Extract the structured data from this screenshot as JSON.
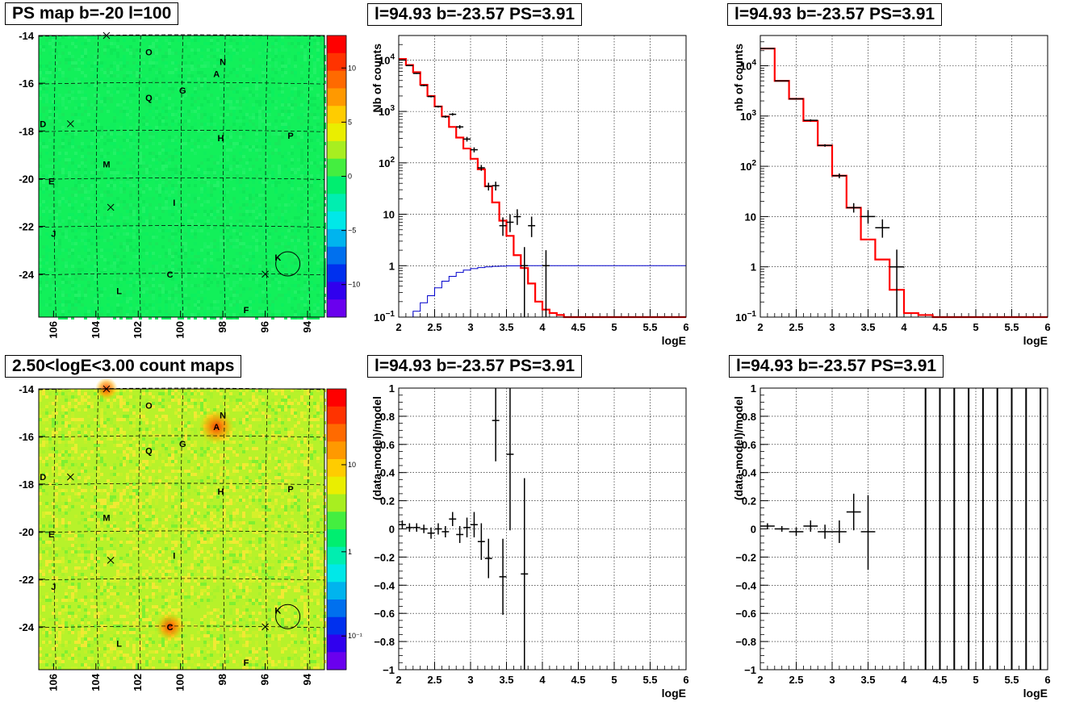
{
  "panels": {
    "map_top": {
      "title": "PS map b=-20 l=100",
      "colorbar": {
        "ticks": [
          10,
          5,
          0,
          -5,
          -10
        ],
        "vmin": -13,
        "vmax": 13
      },
      "base_color": "#12f05a"
    },
    "map_bottom": {
      "title": "2.50<logE<3.00 count maps",
      "colorbar": {
        "ticks": [
          "10",
          "1",
          "10⁻¹"
        ],
        "log": true
      },
      "base_color": "#b7f22a"
    },
    "spec_left_title": "l=94.93 b=-23.57 PS=3.91",
    "spec_right_title": "l=94.93 b=-23.57 PS=3.91",
    "res_left_title": "l=94.93 b=-23.57 PS=3.91",
    "res_right_title": "l=94.93 b=-23.57 PS=3.91"
  },
  "map_axes": {
    "xlim": [
      106.7,
      93.2
    ],
    "ylim": [
      -25.8,
      -14
    ],
    "xticks": [
      106,
      104,
      102,
      100,
      98,
      96,
      94
    ],
    "yticks": [
      -14,
      -16,
      -18,
      -20,
      -22,
      -24
    ],
    "sources": [
      {
        "label": "O",
        "l": 101.5,
        "b": -14.7
      },
      {
        "label": "N",
        "l": 98.0,
        "b": -15.1
      },
      {
        "label": "A",
        "l": 98.3,
        "b": -15.6
      },
      {
        "label": "G",
        "l": 99.9,
        "b": -16.3
      },
      {
        "label": "Q",
        "l": 101.5,
        "b": -16.6
      },
      {
        "label": "D",
        "l": 106.5,
        "b": -17.7
      },
      {
        "label": "H",
        "l": 98.1,
        "b": -18.3
      },
      {
        "label": "P",
        "l": 94.8,
        "b": -18.2
      },
      {
        "label": "M",
        "l": 103.5,
        "b": -19.4
      },
      {
        "label": "E",
        "l": 106.1,
        "b": -20.1
      },
      {
        "label": "I",
        "l": 100.3,
        "b": -21.0
      },
      {
        "label": "J",
        "l": 106.0,
        "b": -22.3
      },
      {
        "label": "K",
        "l": 95.4,
        "b": -23.3
      },
      {
        "label": "C",
        "l": 100.5,
        "b": -24.0
      },
      {
        "label": "L",
        "l": 102.9,
        "b": -24.7
      },
      {
        "label": "F",
        "l": 96.9,
        "b": -25.5
      }
    ],
    "crosses": [
      {
        "l": 103.5,
        "b": -14.0
      },
      {
        "l": 105.2,
        "b": -17.7
      },
      {
        "l": 103.3,
        "b": -21.2
      },
      {
        "l": 96.0,
        "b": -24.0
      }
    ],
    "circle": {
      "l": 94.93,
      "b": -23.57
    }
  },
  "chart_data": [
    {
      "type": "line",
      "xlabel": "logE",
      "ylabel": "Nb of counts",
      "xlim": [
        2,
        6
      ],
      "ylim": [
        0.1,
        30000
      ],
      "ylog": true,
      "grid": true,
      "xticks": [
        "2",
        "2.5",
        "3",
        "3.5",
        "4",
        "4.5",
        "5",
        "5.5",
        "6"
      ],
      "yticks": [
        {
          "v": 10000,
          "t": "10^4"
        },
        {
          "v": 1000,
          "t": "10^3"
        },
        {
          "v": 100,
          "t": "10^2"
        },
        {
          "v": 10,
          "t": "10"
        },
        {
          "v": 1,
          "t": "1"
        },
        {
          "v": 0.1,
          "t": "10^-1"
        }
      ],
      "series": [
        {
          "kind": "step",
          "color": "#ff0000",
          "width": 2.2,
          "edges": [
            2.0,
            2.1,
            2.2,
            2.3,
            2.4,
            2.5,
            2.6,
            2.7,
            2.8,
            2.9,
            3.0,
            3.1,
            3.2,
            3.3,
            3.4,
            3.5,
            3.6,
            3.7,
            3.8,
            3.9,
            4.0,
            4.1,
            4.2,
            4.3,
            6.0
          ],
          "values": [
            10500,
            8000,
            5800,
            3300,
            2000,
            1250,
            800,
            500,
            310,
            190,
            120,
            75,
            35,
            17,
            7.5,
            3.8,
            1.6,
            0.9,
            0.45,
            0.2,
            0.14,
            0.12,
            0.11,
            0.1
          ]
        },
        {
          "kind": "step",
          "color": "#0000cc",
          "width": 1,
          "edges": [
            2.0,
            2.1,
            2.2,
            2.3,
            2.4,
            2.5,
            2.6,
            2.7,
            2.8,
            2.9,
            3.0,
            3.1,
            3.2,
            3.3,
            3.4,
            3.5,
            3.6,
            3.7,
            3.8,
            3.9,
            4.0,
            6.0
          ],
          "values": [
            0.1,
            0.1,
            0.13,
            0.19,
            0.26,
            0.37,
            0.5,
            0.62,
            0.74,
            0.82,
            0.88,
            0.92,
            0.95,
            0.97,
            0.98,
            0.99,
            0.99,
            1.0,
            1.0,
            1.0,
            1.0
          ]
        },
        {
          "kind": "errors",
          "color": "#000000",
          "points": [
            {
              "x": 2.05,
              "y": 10000,
              "xe": 0.05,
              "lo": 9800,
              "hi": 10200
            },
            {
              "x": 2.15,
              "y": 7800,
              "xe": 0.05,
              "lo": 7650,
              "hi": 7950
            },
            {
              "x": 2.25,
              "y": 5500,
              "xe": 0.05,
              "lo": 5370,
              "hi": 5630
            },
            {
              "x": 2.35,
              "y": 3200,
              "xe": 0.05,
              "lo": 3100,
              "hi": 3300
            },
            {
              "x": 2.45,
              "y": 1950,
              "xe": 0.05,
              "lo": 1880,
              "hi": 2020
            },
            {
              "x": 2.55,
              "y": 1240,
              "xe": 0.05,
              "lo": 1190,
              "hi": 1290
            },
            {
              "x": 2.65,
              "y": 790,
              "xe": 0.05,
              "lo": 750,
              "hi": 830
            },
            {
              "x": 2.75,
              "y": 880,
              "xe": 0.05,
              "lo": 830,
              "hi": 930
            },
            {
              "x": 2.85,
              "y": 500,
              "xe": 0.05,
              "lo": 460,
              "hi": 540
            },
            {
              "x": 2.95,
              "y": 290,
              "xe": 0.05,
              "lo": 260,
              "hi": 320
            },
            {
              "x": 3.05,
              "y": 180,
              "xe": 0.05,
              "lo": 160,
              "hi": 200
            },
            {
              "x": 3.15,
              "y": 80,
              "xe": 0.05,
              "lo": 70,
              "hi": 91
            },
            {
              "x": 3.25,
              "y": 35,
              "xe": 0.05,
              "lo": 29,
              "hi": 41
            },
            {
              "x": 3.35,
              "y": 36,
              "xe": 0.05,
              "lo": 29,
              "hi": 43
            },
            {
              "x": 3.45,
              "y": 6,
              "xe": 0.05,
              "lo": 3.8,
              "hi": 8.7
            },
            {
              "x": 3.55,
              "y": 7,
              "xe": 0.05,
              "lo": 4.5,
              "hi": 10
            },
            {
              "x": 3.65,
              "y": 9,
              "xe": 0.05,
              "lo": 6.2,
              "hi": 12.5
            },
            {
              "x": 3.75,
              "y": 1,
              "xe": 0.05,
              "lo": 0.1,
              "hi": 2.3
            },
            {
              "x": 3.85,
              "y": 6,
              "xe": 0.05,
              "lo": 3.6,
              "hi": 9
            },
            {
              "x": 4.05,
              "y": 1,
              "xe": 0.05,
              "lo": 0.1,
              "hi": 2
            }
          ]
        }
      ]
    },
    {
      "type": "line",
      "xlabel": "logE",
      "ylabel": "nb of counts",
      "xlim": [
        2,
        6
      ],
      "ylim": [
        0.1,
        40000
      ],
      "ylog": true,
      "grid": true,
      "xticks": [
        "2",
        "2.5",
        "3",
        "3.5",
        "4",
        "4.5",
        "5",
        "5.5",
        "6"
      ],
      "yticks": [
        {
          "v": 10000,
          "t": "10^4"
        },
        {
          "v": 1000,
          "t": "10^3"
        },
        {
          "v": 100,
          "t": "10^2"
        },
        {
          "v": 10,
          "t": "10"
        },
        {
          "v": 1,
          "t": "1"
        },
        {
          "v": 0.1,
          "t": "10^-1"
        }
      ],
      "series": [
        {
          "kind": "step",
          "color": "#ff0000",
          "width": 2.2,
          "edges": [
            2.0,
            2.2,
            2.4,
            2.6,
            2.8,
            3.0,
            3.2,
            3.4,
            3.6,
            3.8,
            4.0,
            4.2,
            4.4,
            6.0
          ],
          "values": [
            22000,
            5000,
            2200,
            800,
            260,
            65,
            15,
            3.5,
            1.4,
            0.35,
            0.12,
            0.11,
            0.1
          ]
        },
        {
          "kind": "errors",
          "color": "#000000",
          "points": [
            {
              "x": 2.1,
              "y": 22000,
              "xe": 0.1,
              "lo": 21700,
              "hi": 22300
            },
            {
              "x": 2.3,
              "y": 5000,
              "xe": 0.1,
              "lo": 4880,
              "hi": 5120
            },
            {
              "x": 2.5,
              "y": 2200,
              "xe": 0.1,
              "lo": 2130,
              "hi": 2270
            },
            {
              "x": 2.7,
              "y": 820,
              "xe": 0.1,
              "lo": 780,
              "hi": 860
            },
            {
              "x": 2.9,
              "y": 260,
              "xe": 0.1,
              "lo": 245,
              "hi": 275
            },
            {
              "x": 3.1,
              "y": 65,
              "xe": 0.1,
              "lo": 58,
              "hi": 72
            },
            {
              "x": 3.3,
              "y": 15,
              "xe": 0.1,
              "lo": 12,
              "hi": 18.5
            },
            {
              "x": 3.5,
              "y": 10,
              "xe": 0.1,
              "lo": 7.2,
              "hi": 13.5
            },
            {
              "x": 3.7,
              "y": 6,
              "xe": 0.1,
              "lo": 3.8,
              "hi": 8.8
            },
            {
              "x": 3.9,
              "y": 1,
              "xe": 0.1,
              "lo": 0.1,
              "hi": 2.2
            }
          ]
        }
      ]
    },
    {
      "type": "scatter",
      "xlabel": "logE",
      "ylabel": "(data-model)/model",
      "xlim": [
        2,
        6
      ],
      "ylim": [
        -1,
        1
      ],
      "grid": true,
      "xticks": [
        "2",
        "2.5",
        "3",
        "3.5",
        "4",
        "4.5",
        "5",
        "5.5",
        "6"
      ],
      "yticks": [
        {
          "v": 1,
          "t": "1"
        },
        {
          "v": 0.8,
          "t": "0.8"
        },
        {
          "v": 0.6,
          "t": "0.6"
        },
        {
          "v": 0.4,
          "t": "0.4"
        },
        {
          "v": 0.2,
          "t": "0.2"
        },
        {
          "v": 0,
          "t": "0"
        },
        {
          "v": -0.2,
          "t": "−0.2"
        },
        {
          "v": -0.4,
          "t": "−0.4"
        },
        {
          "v": -0.6,
          "t": "−0.6"
        },
        {
          "v": -0.8,
          "t": "−0.8"
        },
        {
          "v": -1,
          "t": "−1"
        }
      ],
      "series": [
        {
          "kind": "errors",
          "color": "#000000",
          "points": [
            {
              "x": 2.05,
              "y": 0.03,
              "xe": 0.05,
              "lo": 0.0,
              "hi": 0.06
            },
            {
              "x": 2.15,
              "y": 0.01,
              "xe": 0.05,
              "lo": -0.02,
              "hi": 0.04
            },
            {
              "x": 2.25,
              "y": 0.01,
              "xe": 0.05,
              "lo": -0.02,
              "hi": 0.04
            },
            {
              "x": 2.35,
              "y": 0.0,
              "xe": 0.05,
              "lo": -0.03,
              "hi": 0.03
            },
            {
              "x": 2.45,
              "y": -0.03,
              "xe": 0.05,
              "lo": -0.07,
              "hi": 0.01
            },
            {
              "x": 2.55,
              "y": 0.0,
              "xe": 0.05,
              "lo": -0.04,
              "hi": 0.04
            },
            {
              "x": 2.65,
              "y": -0.02,
              "xe": 0.05,
              "lo": -0.06,
              "hi": 0.02
            },
            {
              "x": 2.75,
              "y": 0.07,
              "xe": 0.05,
              "lo": 0.02,
              "hi": 0.12
            },
            {
              "x": 2.85,
              "y": -0.04,
              "xe": 0.05,
              "lo": -0.1,
              "hi": 0.02
            },
            {
              "x": 2.95,
              "y": 0.01,
              "xe": 0.05,
              "lo": -0.06,
              "hi": 0.08
            },
            {
              "x": 3.05,
              "y": 0.03,
              "xe": 0.05,
              "lo": -0.06,
              "hi": 0.12
            },
            {
              "x": 3.15,
              "y": -0.09,
              "xe": 0.05,
              "lo": -0.22,
              "hi": 0.04
            },
            {
              "x": 3.25,
              "y": -0.21,
              "xe": 0.05,
              "lo": -0.35,
              "hi": -0.07
            },
            {
              "x": 3.35,
              "y": 0.77,
              "xe": 0.05,
              "lo": 0.48,
              "hi": 1.0
            },
            {
              "x": 3.45,
              "y": -0.34,
              "xe": 0.05,
              "lo": -0.61,
              "hi": -0.07
            },
            {
              "x": 3.55,
              "y": 0.53,
              "xe": 0.05,
              "lo": -0.01,
              "hi": 1.0
            },
            {
              "x": 3.75,
              "y": -0.32,
              "xe": 0.05,
              "lo": -1.0,
              "hi": 0.36
            }
          ]
        }
      ]
    },
    {
      "type": "scatter",
      "xlabel": "logE",
      "ylabel": "(data-model)/model",
      "xlim": [
        2,
        6
      ],
      "ylim": [
        -1,
        1
      ],
      "grid": true,
      "xticks": [
        "2",
        "2.5",
        "3",
        "3.5",
        "4",
        "4.5",
        "5",
        "5.5",
        "6"
      ],
      "yticks": [
        {
          "v": 1,
          "t": "1"
        },
        {
          "v": 0.8,
          "t": "0.8"
        },
        {
          "v": 0.6,
          "t": "0.6"
        },
        {
          "v": 0.4,
          "t": "0.4"
        },
        {
          "v": 0.2,
          "t": "0.2"
        },
        {
          "v": 0,
          "t": "0"
        },
        {
          "v": -0.2,
          "t": "−0.2"
        },
        {
          "v": -0.4,
          "t": "−0.4"
        },
        {
          "v": -0.6,
          "t": "−0.6"
        },
        {
          "v": -0.8,
          "t": "−0.8"
        },
        {
          "v": -1,
          "t": "−1"
        }
      ],
      "series": [
        {
          "kind": "errors",
          "color": "#000000",
          "points": [
            {
              "x": 2.1,
              "y": 0.02,
              "xe": 0.1,
              "lo": 0.0,
              "hi": 0.04
            },
            {
              "x": 2.3,
              "y": 0.0,
              "xe": 0.1,
              "lo": -0.02,
              "hi": 0.02
            },
            {
              "x": 2.5,
              "y": -0.02,
              "xe": 0.1,
              "lo": -0.05,
              "hi": 0.01
            },
            {
              "x": 2.7,
              "y": 0.02,
              "xe": 0.1,
              "lo": -0.02,
              "hi": 0.06
            },
            {
              "x": 2.9,
              "y": -0.02,
              "xe": 0.1,
              "lo": -0.07,
              "hi": 0.03
            },
            {
              "x": 3.1,
              "y": -0.02,
              "xe": 0.1,
              "lo": -0.1,
              "hi": 0.06
            },
            {
              "x": 3.3,
              "y": 0.12,
              "xe": 0.1,
              "lo": -0.01,
              "hi": 0.25
            },
            {
              "x": 3.5,
              "y": -0.02,
              "xe": 0.1,
              "lo": -0.29,
              "hi": 0.24
            }
          ]
        },
        {
          "kind": "vlines",
          "color": "#000000",
          "x": [
            4.3,
            4.5,
            4.7,
            4.9,
            5.1,
            5.3,
            5.5,
            5.7,
            5.9
          ],
          "lo": -1,
          "hi": 1
        }
      ]
    }
  ]
}
